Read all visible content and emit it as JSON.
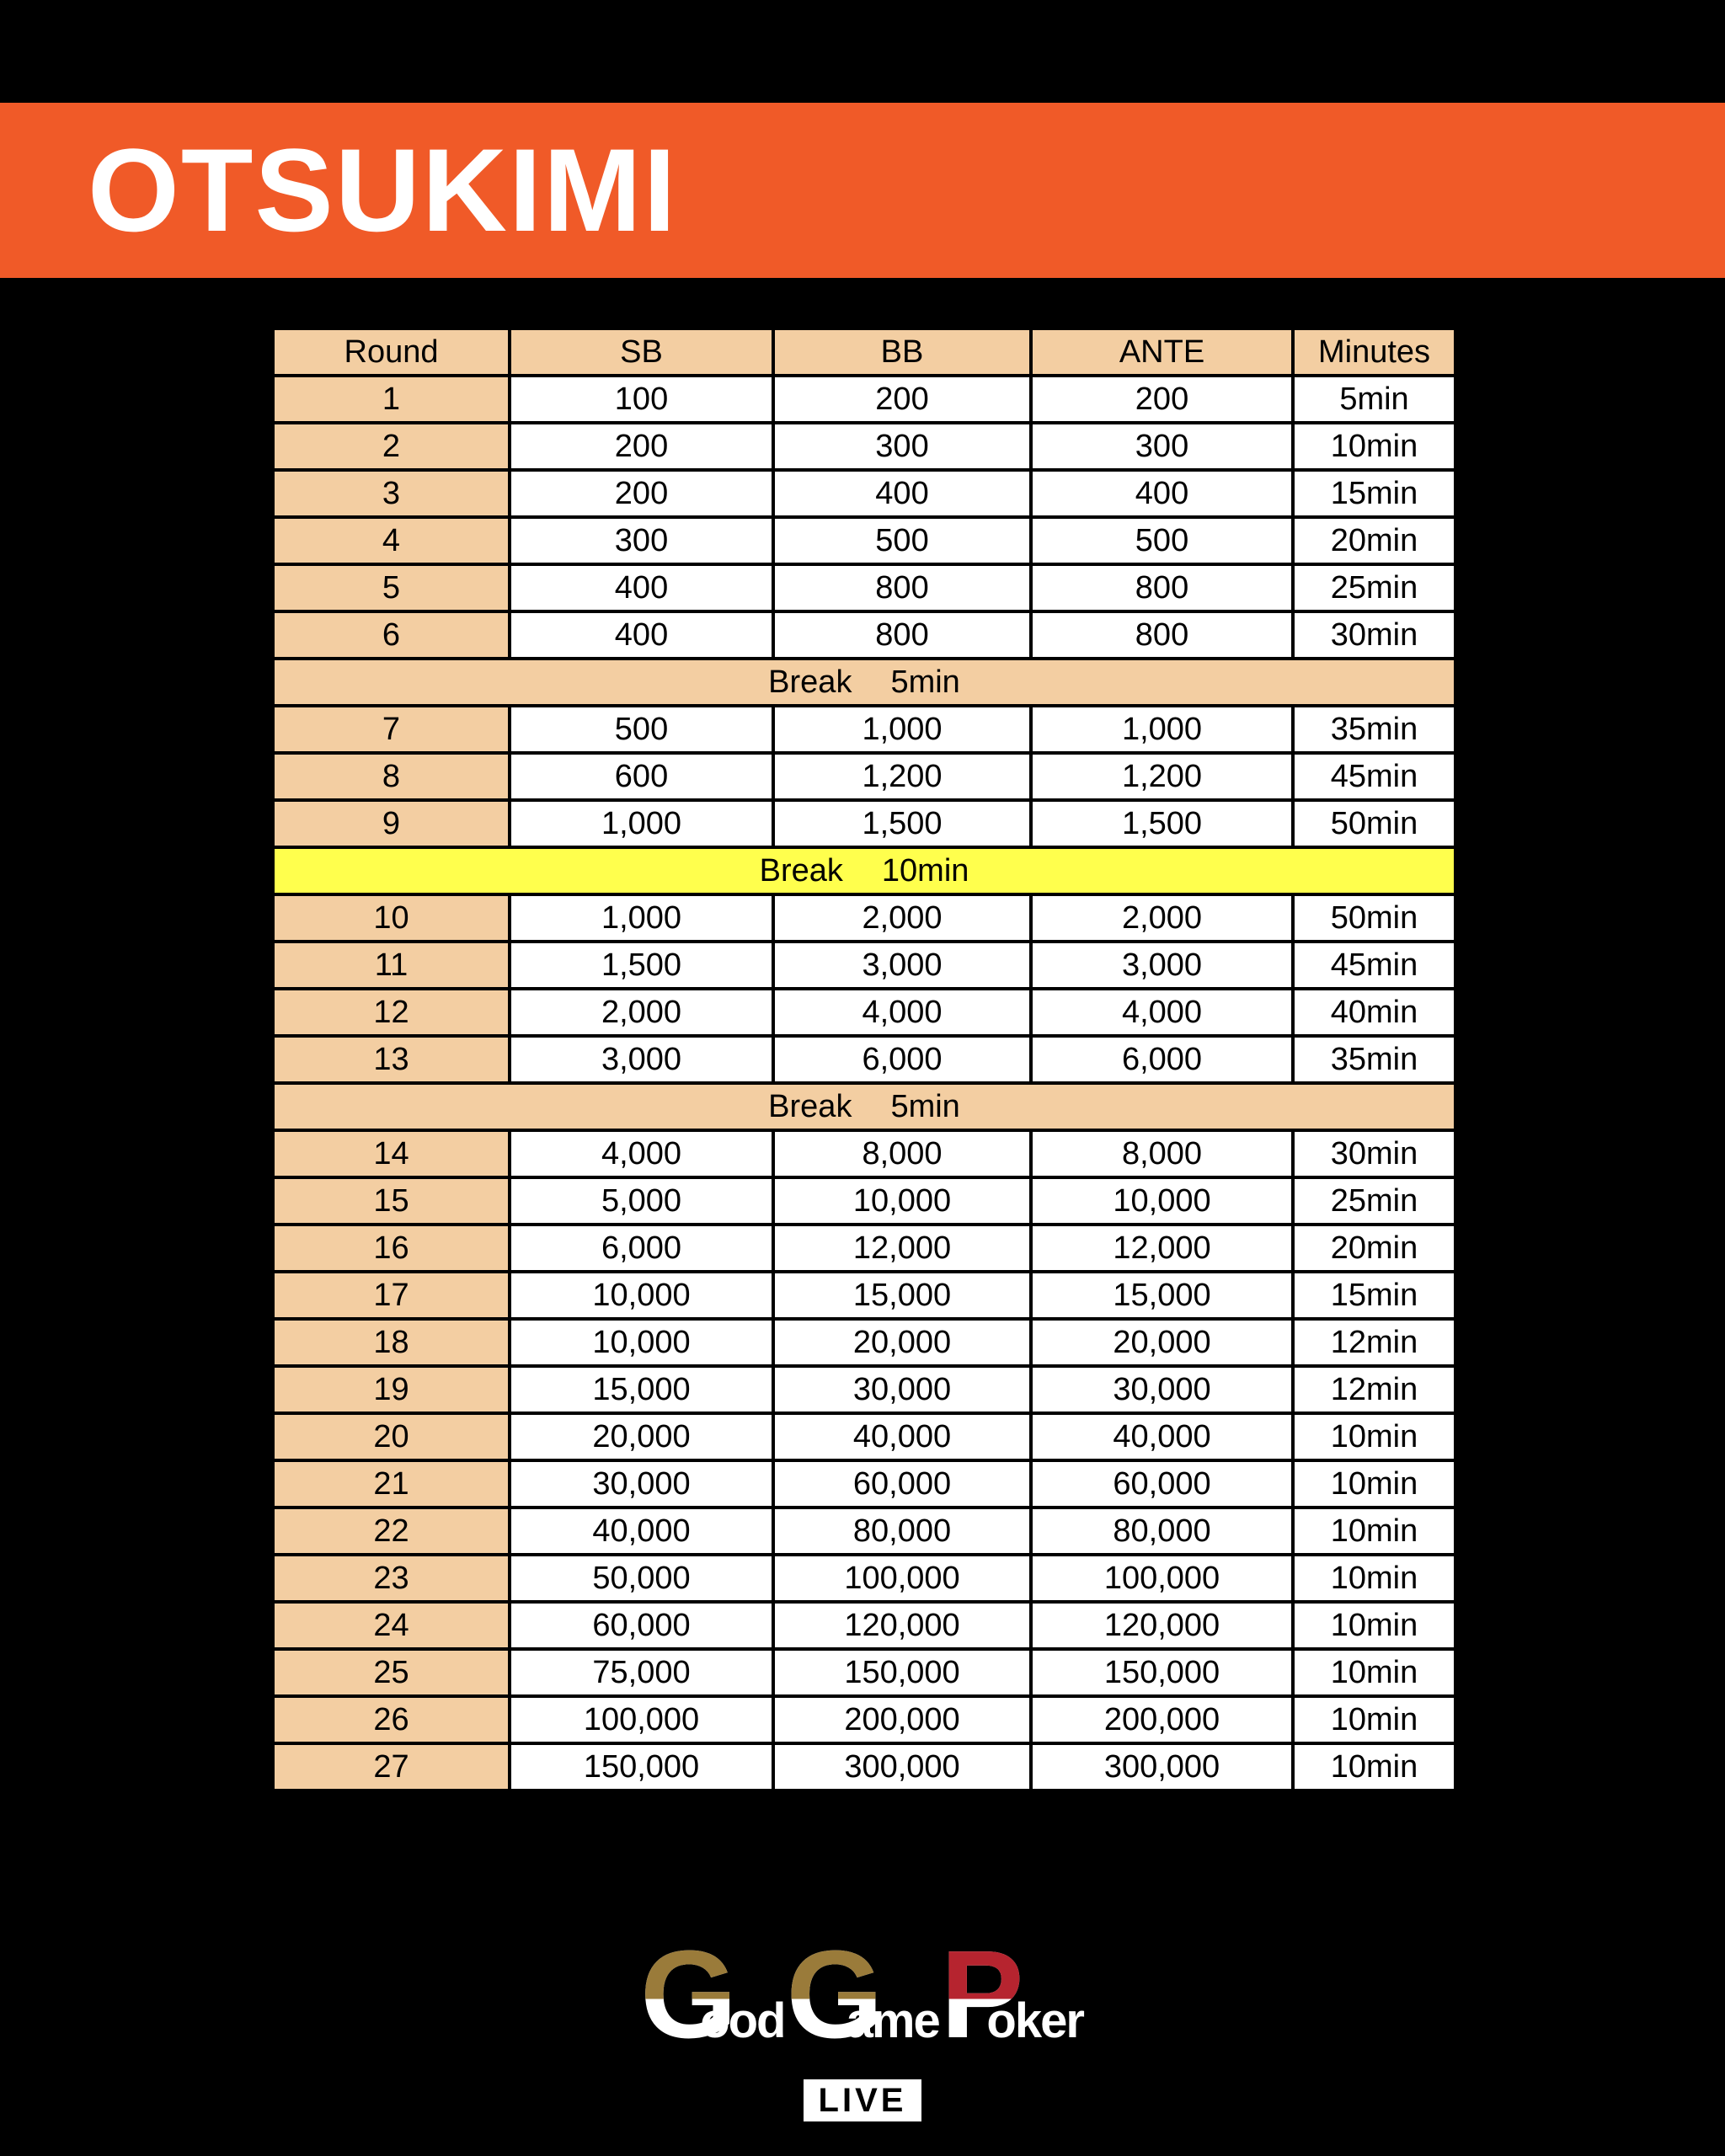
{
  "title": "OTSUKIMI",
  "table": {
    "headers": [
      "Round",
      "SB",
      "BB",
      "ANTE",
      "Minutes"
    ],
    "rows": [
      {
        "type": "level",
        "round": "1",
        "sb": "100",
        "bb": "200",
        "ante": "200",
        "minutes": "5min"
      },
      {
        "type": "level",
        "round": "2",
        "sb": "200",
        "bb": "300",
        "ante": "300",
        "minutes": "10min"
      },
      {
        "type": "level",
        "round": "3",
        "sb": "200",
        "bb": "400",
        "ante": "400",
        "minutes": "15min"
      },
      {
        "type": "level",
        "round": "4",
        "sb": "300",
        "bb": "500",
        "ante": "500",
        "minutes": "20min"
      },
      {
        "type": "level",
        "round": "5",
        "sb": "400",
        "bb": "800",
        "ante": "800",
        "minutes": "25min"
      },
      {
        "type": "level",
        "round": "6",
        "sb": "400",
        "bb": "800",
        "ante": "800",
        "minutes": "30min"
      },
      {
        "type": "break",
        "label": "Break",
        "duration": "5min",
        "highlight": "peach"
      },
      {
        "type": "level",
        "round": "7",
        "sb": "500",
        "bb": "1,000",
        "ante": "1,000",
        "minutes": "35min"
      },
      {
        "type": "level",
        "round": "8",
        "sb": "600",
        "bb": "1,200",
        "ante": "1,200",
        "minutes": "45min"
      },
      {
        "type": "level",
        "round": "9",
        "sb": "1,000",
        "bb": "1,500",
        "ante": "1,500",
        "minutes": "50min"
      },
      {
        "type": "break",
        "label": "Break",
        "duration": "10min",
        "highlight": "yellow"
      },
      {
        "type": "level",
        "round": "10",
        "sb": "1,000",
        "bb": "2,000",
        "ante": "2,000",
        "minutes": "50min"
      },
      {
        "type": "level",
        "round": "11",
        "sb": "1,500",
        "bb": "3,000",
        "ante": "3,000",
        "minutes": "45min"
      },
      {
        "type": "level",
        "round": "12",
        "sb": "2,000",
        "bb": "4,000",
        "ante": "4,000",
        "minutes": "40min"
      },
      {
        "type": "level",
        "round": "13",
        "sb": "3,000",
        "bb": "6,000",
        "ante": "6,000",
        "minutes": "35min"
      },
      {
        "type": "break",
        "label": "Break",
        "duration": "5min",
        "highlight": "peach"
      },
      {
        "type": "level",
        "round": "14",
        "sb": "4,000",
        "bb": "8,000",
        "ante": "8,000",
        "minutes": "30min"
      },
      {
        "type": "level",
        "round": "15",
        "sb": "5,000",
        "bb": "10,000",
        "ante": "10,000",
        "minutes": "25min"
      },
      {
        "type": "level",
        "round": "16",
        "sb": "6,000",
        "bb": "12,000",
        "ante": "12,000",
        "minutes": "20min"
      },
      {
        "type": "level",
        "round": "17",
        "sb": "10,000",
        "bb": "15,000",
        "ante": "15,000",
        "minutes": "15min"
      },
      {
        "type": "level",
        "round": "18",
        "sb": "10,000",
        "bb": "20,000",
        "ante": "20,000",
        "minutes": "12min"
      },
      {
        "type": "level",
        "round": "19",
        "sb": "15,000",
        "bb": "30,000",
        "ante": "30,000",
        "minutes": "12min"
      },
      {
        "type": "level",
        "round": "20",
        "sb": "20,000",
        "bb": "40,000",
        "ante": "40,000",
        "minutes": "10min"
      },
      {
        "type": "level",
        "round": "21",
        "sb": "30,000",
        "bb": "60,000",
        "ante": "60,000",
        "minutes": "10min"
      },
      {
        "type": "level",
        "round": "22",
        "sb": "40,000",
        "bb": "80,000",
        "ante": "80,000",
        "minutes": "10min"
      },
      {
        "type": "level",
        "round": "23",
        "sb": "50,000",
        "bb": "100,000",
        "ante": "100,000",
        "minutes": "10min"
      },
      {
        "type": "level",
        "round": "24",
        "sb": "60,000",
        "bb": "120,000",
        "ante": "120,000",
        "minutes": "10min"
      },
      {
        "type": "level",
        "round": "25",
        "sb": "75,000",
        "bb": "150,000",
        "ante": "150,000",
        "minutes": "10min"
      },
      {
        "type": "level",
        "round": "26",
        "sb": "100,000",
        "bb": "200,000",
        "ante": "200,000",
        "minutes": "10min"
      },
      {
        "type": "level",
        "round": "27",
        "sb": "150,000",
        "bb": "300,000",
        "ante": "300,000",
        "minutes": "10min"
      }
    ]
  },
  "logo": {
    "brand": "GoodGamePoker",
    "parts": [
      {
        "text": "G"
      },
      {
        "text": "ood"
      },
      {
        "text": "G"
      },
      {
        "text": "ame"
      },
      {
        "text": "P"
      },
      {
        "text": "oker"
      }
    ],
    "live_label": "LIVE"
  },
  "colors": {
    "background": "#000000",
    "banner_orange": "#F05A28",
    "header_peach": "#F3CEA2",
    "break_yellow": "#FFFF4D",
    "cell_white": "#FFFFFF",
    "text_black": "#000000",
    "title_white": "#FFFFFF",
    "logo_gold": "#9A7B3A",
    "logo_red": "#B6242F"
  }
}
